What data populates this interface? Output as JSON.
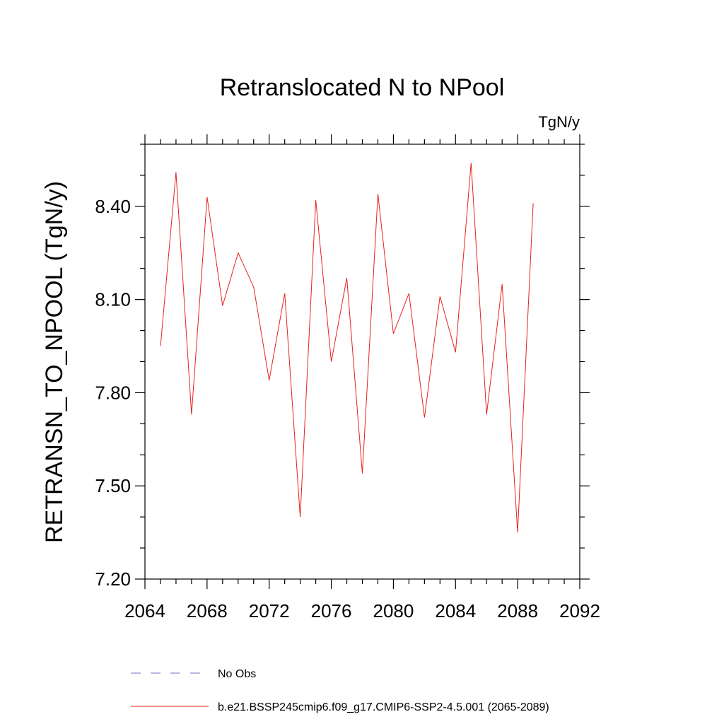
{
  "chart_data": {
    "type": "line",
    "title": "Retranslocated N to NPool",
    "units": "TgN/y",
    "ylabel": "RETRANSN_TO_NPOOL  (TgN/y)",
    "xlabel": "",
    "xlim": [
      2064,
      2092
    ],
    "ylim": [
      7.2,
      8.6
    ],
    "x_ticks": [
      "2064",
      "2068",
      "2072",
      "2076",
      "2080",
      "2084",
      "2088",
      "2092"
    ],
    "x_tick_values": [
      2064,
      2068,
      2072,
      2076,
      2080,
      2084,
      2088,
      2092
    ],
    "y_ticks": [
      "7.20",
      "7.50",
      "7.80",
      "8.10",
      "8.40"
    ],
    "y_tick_values": [
      7.2,
      7.5,
      7.8,
      8.1,
      8.4
    ],
    "grid": false,
    "legend_placement": "bottom",
    "series": [
      {
        "name": "No Obs",
        "color": "#7b6fbf",
        "dash": "dashed",
        "x": [],
        "values": []
      },
      {
        "name": "b.e21.BSSP245cmip6.f09_g17.CMIP6-SSP2-4.5.001 (2065-2089)",
        "color": "#e8201e",
        "dash": "solid",
        "x": [
          2065,
          2066,
          2067,
          2068,
          2069,
          2070,
          2071,
          2072,
          2073,
          2074,
          2075,
          2076,
          2077,
          2078,
          2079,
          2080,
          2081,
          2082,
          2083,
          2084,
          2085,
          2086,
          2087,
          2088,
          2089
        ],
        "values": [
          7.95,
          8.51,
          7.73,
          8.43,
          8.08,
          8.25,
          8.14,
          7.84,
          8.12,
          7.4,
          8.42,
          7.9,
          8.17,
          7.54,
          8.44,
          7.99,
          8.12,
          7.72,
          8.11,
          7.93,
          8.54,
          7.73,
          8.15,
          7.35,
          8.41
        ]
      }
    ]
  }
}
